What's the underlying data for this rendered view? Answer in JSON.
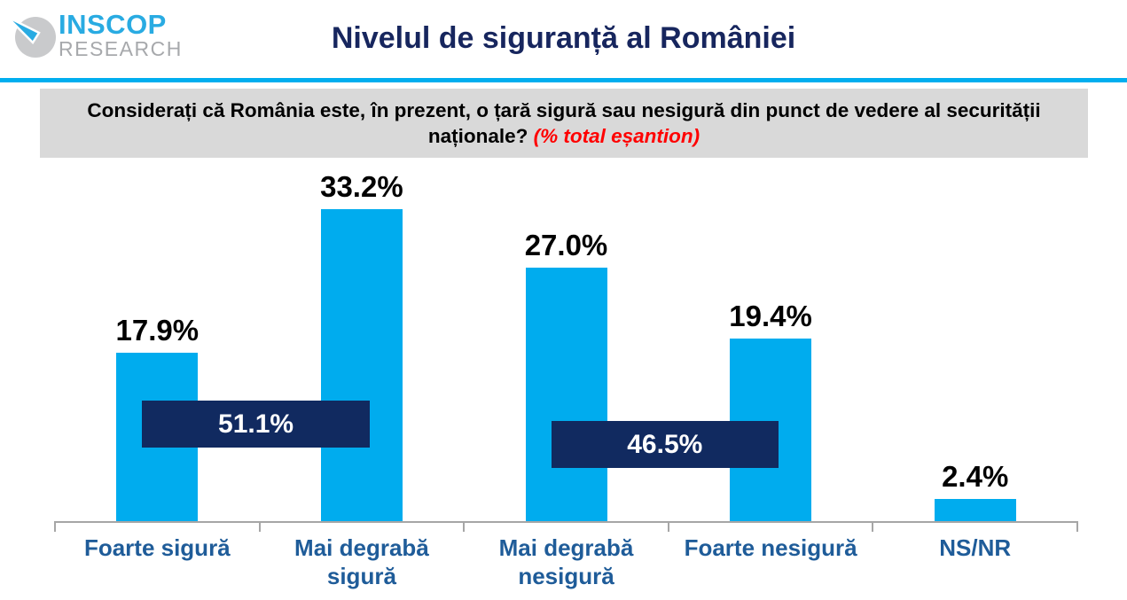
{
  "header": {
    "logo": {
      "name": "INSCOP",
      "subname": "RESEARCH"
    },
    "title": "Nivelul de siguranță al României"
  },
  "question": {
    "line1": "Considerați că România este, în prezent, o țară sigură sau nesigură din punct de vedere al securității",
    "line2": "naționale?",
    "note": "(% total eșantion)"
  },
  "chart_data": {
    "type": "bar",
    "categories": [
      "Foarte sigură",
      "Mai degrabă sigură",
      "Mai degrabă nesigură",
      "Foarte nesigură",
      "NS/NR"
    ],
    "values": [
      17.9,
      33.2,
      27.0,
      19.4,
      2.4
    ],
    "value_labels": [
      "17.9%",
      "33.2%",
      "27.0%",
      "19.4%",
      "2.4%"
    ],
    "group_annotations": [
      {
        "label": "51.1%",
        "from": 0,
        "to": 1
      },
      {
        "label": "46.5%",
        "from": 2,
        "to": 3
      }
    ],
    "title": "",
    "xlabel": "",
    "ylabel": "",
    "ylim": [
      0,
      38.5
    ],
    "grid": false,
    "legend": false,
    "colors": {
      "bar": "#00ACEE",
      "annotation_bg": "#112A60",
      "annotation_text": "#FFFFFF",
      "value_label": "#000000",
      "category_label": "#1F5C99",
      "axis": "#A6A6A6"
    }
  },
  "colors": {
    "title": "#17265E",
    "divider": "#00AEEF",
    "question_bg": "#D9D9D9",
    "question_text": "#000000",
    "question_note": "#FF0000",
    "logo_primary": "#29ABE2",
    "logo_secondary": "#A7A9AC",
    "logo_circle": "#C9CACC"
  }
}
